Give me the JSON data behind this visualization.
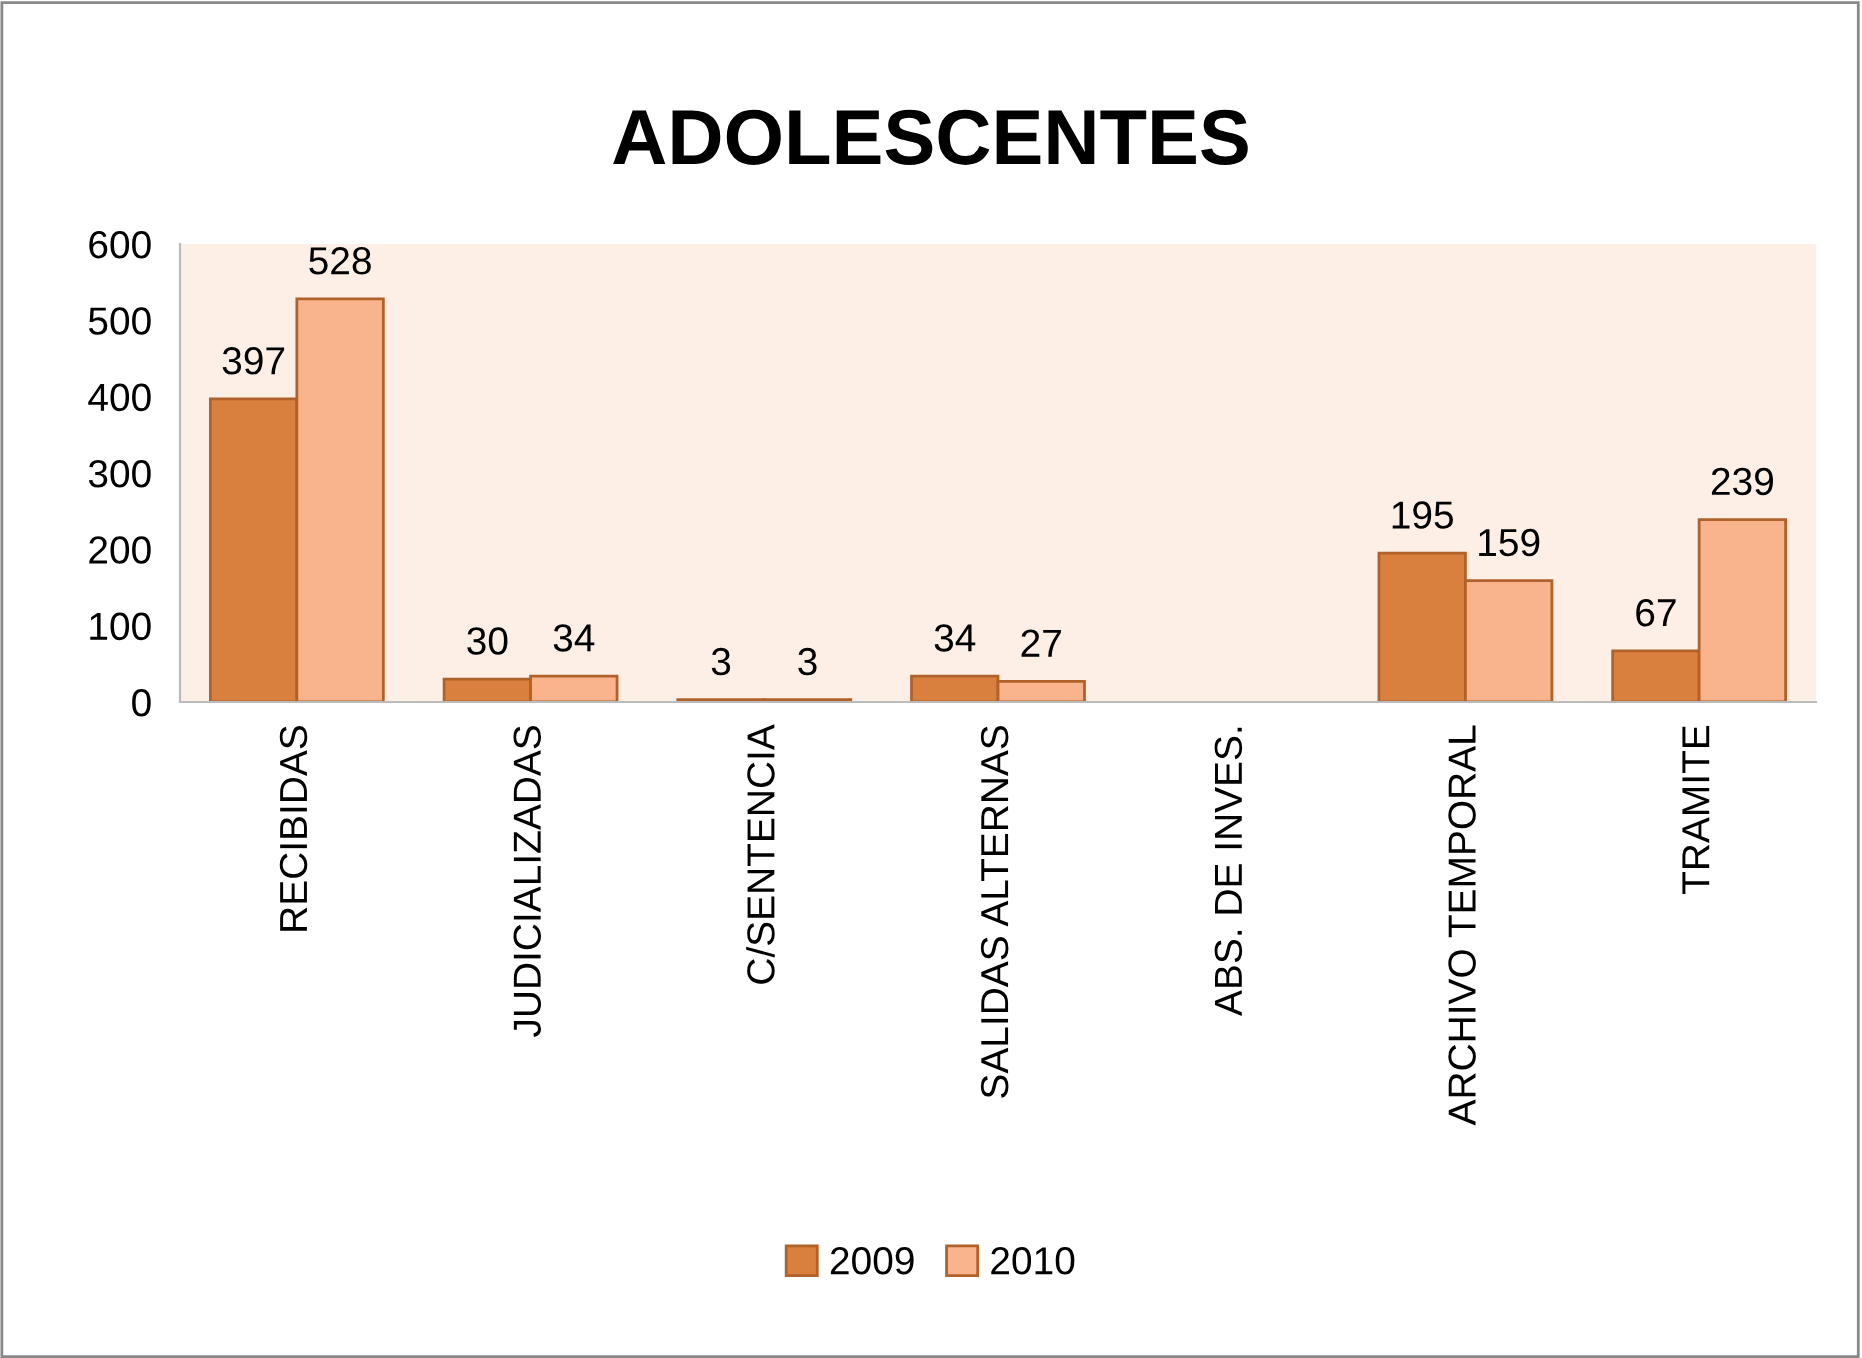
{
  "chart_data": {
    "type": "bar",
    "title": "ADOLESCENTES",
    "categories": [
      "RECIBIDAS",
      "JUDICIALIZADAS",
      "C/SENTENCIA",
      "SALIDAS ALTERNAS",
      "ABS. DE INVES.",
      "ARCHIVO TEMPORAL",
      "TRAMITE"
    ],
    "series": [
      {
        "name": "2009",
        "color": "#d9803e",
        "values": [
          397,
          30,
          3,
          34,
          null,
          195,
          67
        ]
      },
      {
        "name": "2010",
        "color": "#f9b48e",
        "values": [
          528,
          34,
          3,
          27,
          null,
          159,
          239
        ]
      }
    ],
    "ylim": [
      0,
      600
    ],
    "yticks": [
      0,
      100,
      200,
      300,
      400,
      500,
      600
    ],
    "data_labels": true,
    "grid": false,
    "legend": "bottom"
  }
}
